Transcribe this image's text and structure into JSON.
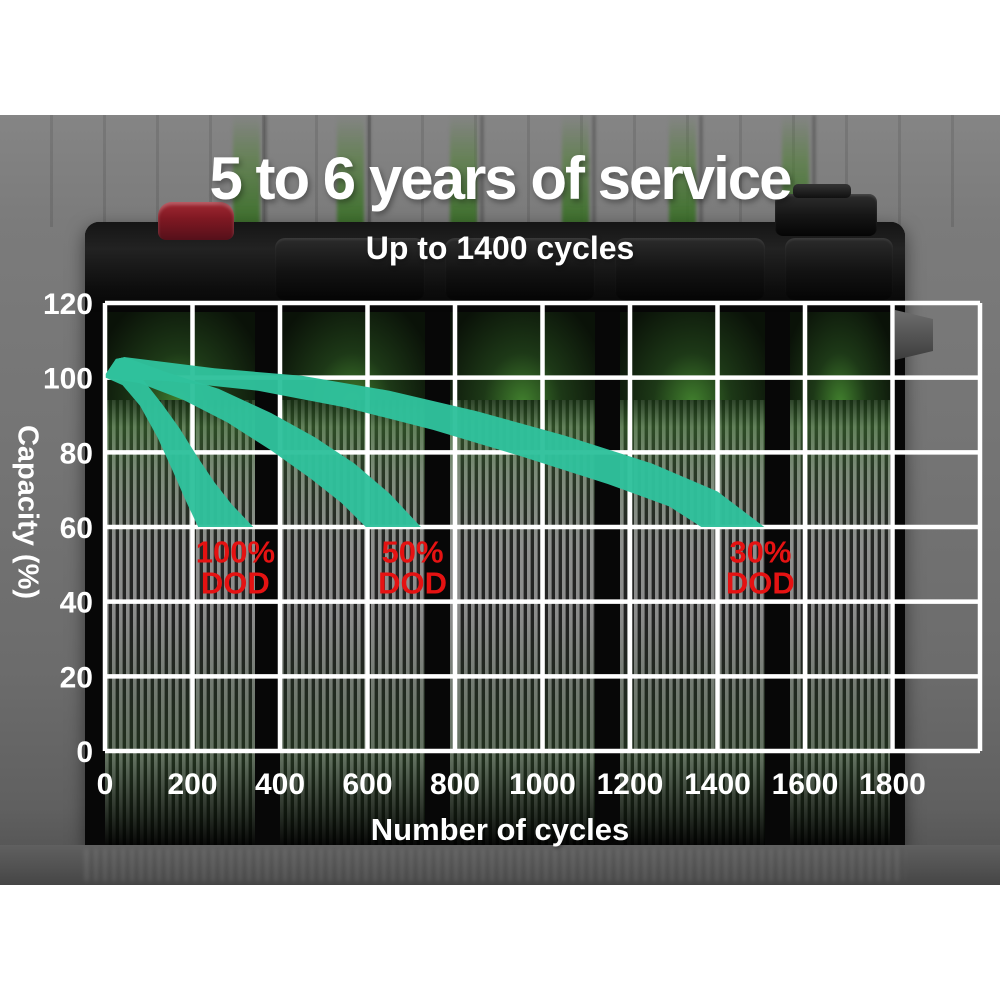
{
  "header": {
    "title": "5 to 6 years of service",
    "subtitle": "Up to 1400 cycles"
  },
  "chart_data": {
    "type": "area",
    "title": "5 to 6 years of service",
    "subtitle": "Up to 1400 cycles",
    "xlabel": "Number of cycles",
    "ylabel": "Capacity (%)",
    "xlim": [
      0,
      2000
    ],
    "ylim": [
      0,
      120
    ],
    "x_tick_labels": [
      "0",
      "200",
      "400",
      "600",
      "800",
      "1000",
      "1200",
      "1400",
      "1600",
      "1800"
    ],
    "x_tick_values": [
      0,
      200,
      400,
      600,
      800,
      1000,
      1200,
      1400,
      1600,
      1800
    ],
    "x_gridline_values": [
      0,
      200,
      400,
      600,
      800,
      1000,
      1200,
      1400,
      1600,
      1800,
      2000
    ],
    "y_tick_labels": [
      "120",
      "100",
      "80",
      "60",
      "40",
      "20",
      "0"
    ],
    "y_tick_values": [
      120,
      100,
      80,
      60,
      40,
      20,
      0
    ],
    "grid": true,
    "legend_position": "none",
    "colors": {
      "band": "#2fc19c",
      "grid": "#ffffff",
      "tick_labels": "#ffffff",
      "dod_labels": "#e51212"
    },
    "series": [
      {
        "name": "100% DOD",
        "dod_percent": 100,
        "start_capacity": 101,
        "peak_capacity": 105.5,
        "end_cycles": 340,
        "end_capacity": 60,
        "label_lines": [
          "100%",
          "DOD"
        ],
        "label_at": {
          "cycles": 298,
          "capacity": 49.3
        },
        "upper_edge": [
          [
            2,
            101
          ],
          [
            25,
            105
          ],
          [
            45,
            105.5
          ],
          [
            90,
            99
          ],
          [
            130,
            93
          ],
          [
            170,
            86.5
          ],
          [
            210,
            79
          ],
          [
            250,
            72
          ],
          [
            290,
            66
          ],
          [
            339,
            60
          ]
        ],
        "lower_edge": [
          [
            2,
            100
          ],
          [
            40,
            98
          ],
          [
            80,
            92.5
          ],
          [
            120,
            84
          ],
          [
            155,
            75
          ],
          [
            185,
            67
          ],
          [
            213,
            60
          ]
        ]
      },
      {
        "name": "50% DOD",
        "dod_percent": 50,
        "start_capacity": 101,
        "peak_capacity": 105.5,
        "end_cycles": 720,
        "end_capacity": 60,
        "label_lines": [
          "50%",
          "DOD"
        ],
        "label_at": {
          "cycles": 703,
          "capacity": 49.3
        },
        "upper_edge": [
          [
            2,
            101
          ],
          [
            25,
            105
          ],
          [
            45,
            105.5
          ],
          [
            140,
            101.5
          ],
          [
            260,
            97
          ],
          [
            380,
            90.5
          ],
          [
            480,
            84
          ],
          [
            570,
            77
          ],
          [
            650,
            69
          ],
          [
            722,
            60
          ]
        ],
        "lower_edge": [
          [
            2,
            100
          ],
          [
            80,
            98.5
          ],
          [
            180,
            94
          ],
          [
            280,
            88
          ],
          [
            380,
            80.5
          ],
          [
            470,
            73
          ],
          [
            540,
            66.5
          ],
          [
            596,
            60
          ]
        ]
      },
      {
        "name": "30% DOD",
        "dod_percent": 30,
        "start_capacity": 101,
        "peak_capacity": 105.5,
        "end_cycles": 1510,
        "end_capacity": 60,
        "label_lines": [
          "30%",
          "DOD"
        ],
        "label_at": {
          "cycles": 1498,
          "capacity": 49.3
        },
        "upper_edge": [
          [
            2,
            101
          ],
          [
            25,
            105
          ],
          [
            45,
            105.5
          ],
          [
            250,
            102.5
          ],
          [
            450,
            100.5
          ],
          [
            650,
            96.5
          ],
          [
            850,
            91
          ],
          [
            1050,
            84.5
          ],
          [
            1250,
            77
          ],
          [
            1400,
            69.5
          ],
          [
            1507,
            60
          ]
        ],
        "lower_edge": [
          [
            2,
            100
          ],
          [
            150,
            99
          ],
          [
            350,
            96.5
          ],
          [
            550,
            92
          ],
          [
            750,
            86
          ],
          [
            950,
            79
          ],
          [
            1150,
            71.5
          ],
          [
            1290,
            65.5
          ],
          [
            1363,
            60
          ]
        ]
      }
    ]
  }
}
